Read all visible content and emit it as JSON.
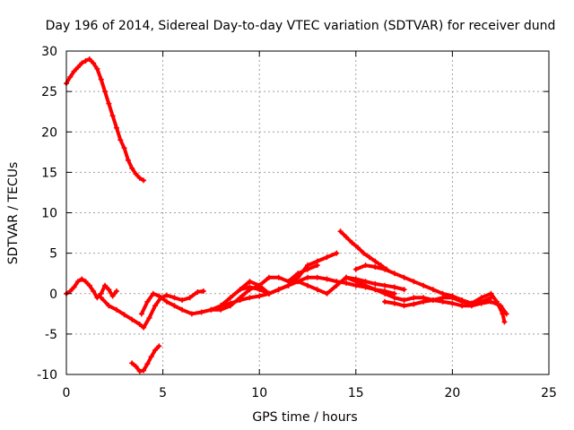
{
  "chart_data": {
    "type": "scatter",
    "title": "Day 196 of 2014, Sidereal Day-to-day VTEC variation (SDTVAR) for receiver dund",
    "xlabel": "GPS time / hours",
    "ylabel": "SDTVAR / TECUs",
    "xlim": [
      0,
      25
    ],
    "ylim": [
      -10,
      30
    ],
    "xticks": [
      0,
      5,
      10,
      15,
      20,
      25
    ],
    "yticks": [
      -10,
      -5,
      0,
      5,
      10,
      15,
      20,
      25,
      30
    ],
    "grid": true,
    "colors": {
      "series": "#ff0000",
      "grid": "#a0a0a0",
      "axis": "#000000"
    },
    "series": [
      {
        "name": "trace-1",
        "x": [
          0.0,
          0.2,
          0.4,
          0.6,
          0.8,
          1.0,
          1.2,
          1.4,
          1.6,
          1.8,
          2.0,
          2.2,
          2.4,
          2.6,
          2.8,
          3.0,
          3.2,
          3.4,
          3.6,
          3.8,
          4.0
        ],
        "y": [
          26.0,
          26.8,
          27.5,
          28.0,
          28.5,
          28.8,
          29.0,
          28.5,
          27.8,
          26.5,
          25.0,
          23.5,
          22.0,
          20.5,
          19.0,
          18.0,
          16.5,
          15.5,
          14.8,
          14.3,
          14.0
        ]
      },
      {
        "name": "trace-2",
        "x": [
          0.0,
          0.2,
          0.4,
          0.6,
          0.8,
          1.0,
          1.2,
          1.4,
          1.6,
          1.8,
          2.0,
          2.2,
          2.4,
          2.6
        ],
        "y": [
          0.0,
          0.3,
          0.8,
          1.5,
          1.8,
          1.5,
          1.0,
          0.3,
          -0.5,
          0.0,
          1.0,
          0.5,
          -0.3,
          0.3
        ]
      },
      {
        "name": "trace-3",
        "x": [
          1.8,
          2.2,
          2.6,
          3.0,
          3.4,
          3.8,
          4.0,
          4.3,
          4.6,
          4.9,
          5.2,
          5.6,
          6.0,
          6.4,
          6.8,
          7.1
        ],
        "y": [
          -0.5,
          -1.5,
          -2.0,
          -2.6,
          -3.2,
          -3.8,
          -4.2,
          -3.0,
          -1.5,
          -0.5,
          -0.2,
          -0.5,
          -0.8,
          -0.5,
          0.2,
          0.3
        ]
      },
      {
        "name": "trace-4",
        "x": [
          3.4,
          3.6,
          3.8,
          4.0,
          4.2,
          4.4,
          4.6,
          4.8
        ],
        "y": [
          -8.6,
          -9.0,
          -9.6,
          -9.5,
          -8.7,
          -7.8,
          -7.0,
          -6.5
        ]
      },
      {
        "name": "trace-5",
        "x": [
          3.9,
          4.2,
          4.5,
          4.8,
          5.2,
          5.6,
          6.0,
          6.5,
          7.0,
          7.5,
          8.0,
          8.5,
          9.0,
          9.5,
          10.0,
          10.5,
          11.0,
          11.5,
          12.0,
          12.5,
          13.0,
          13.5,
          14.0,
          14.5,
          15.0,
          15.5,
          16.0,
          16.5,
          17.0
        ],
        "y": [
          -2.5,
          -1.0,
          0.0,
          -0.3,
          -1.0,
          -1.5,
          -2.0,
          -2.5,
          -2.3,
          -2.0,
          -1.5,
          -1.2,
          -0.8,
          -0.5,
          -0.3,
          0.0,
          0.5,
          1.0,
          1.5,
          2.0,
          2.0,
          1.8,
          1.5,
          1.3,
          1.0,
          0.8,
          0.5,
          0.3,
          0.0
        ]
      },
      {
        "name": "trace-6",
        "x": [
          8.0,
          8.5,
          9.0,
          9.5,
          10.0,
          10.5,
          11.0,
          11.5,
          12.0,
          12.5,
          13.0,
          13.5,
          14.0
        ],
        "y": [
          -1.5,
          -0.5,
          0.5,
          0.8,
          0.5,
          0.0,
          0.5,
          1.0,
          2.0,
          3.5,
          4.0,
          4.5,
          5.0
        ]
      },
      {
        "name": "trace-7",
        "x": [
          7.5,
          8.0,
          8.5,
          9.0,
          9.5,
          10.0,
          10.5,
          11.0,
          11.5,
          12.0,
          12.5,
          13.0
        ],
        "y": [
          -2.0,
          -2.0,
          -1.5,
          -0.5,
          0.5,
          1.0,
          2.0,
          2.0,
          1.5,
          2.5,
          3.0,
          3.5
        ]
      },
      {
        "name": "trace-8",
        "x": [
          9.0,
          9.5,
          10.0,
          10.5,
          11.0,
          11.5,
          12.0,
          12.5,
          13.0,
          13.5,
          14.0,
          14.5,
          15.0,
          15.5,
          16.0,
          16.5,
          17.0,
          17.5
        ],
        "y": [
          0.5,
          1.5,
          1.0,
          0.0,
          0.5,
          1.0,
          1.5,
          1.0,
          0.5,
          0.0,
          1.0,
          2.0,
          1.8,
          1.5,
          1.2,
          1.0,
          0.8,
          0.5
        ]
      },
      {
        "name": "trace-9",
        "x": [
          14.2,
          14.5,
          14.8,
          15.1,
          15.4,
          15.7,
          16.0,
          16.3,
          16.6
        ],
        "y": [
          7.7,
          7.0,
          6.3,
          5.7,
          5.0,
          4.5,
          4.0,
          3.5,
          3.0
        ]
      },
      {
        "name": "trace-10",
        "x": [
          14.5,
          15.0,
          15.5,
          16.0,
          16.5,
          17.0,
          17.5,
          18.0,
          18.5,
          19.0,
          19.5,
          20.0,
          20.5,
          21.0,
          21.5,
          22.0,
          22.5,
          22.8
        ],
        "y": [
          2.0,
          1.5,
          1.0,
          0.5,
          0.0,
          -0.5,
          -0.8,
          -0.5,
          -0.5,
          -0.8,
          -1.0,
          -1.2,
          -1.5,
          -1.5,
          -1.2,
          -1.0,
          -1.5,
          -2.5
        ]
      },
      {
        "name": "trace-11",
        "x": [
          15.0,
          15.5,
          16.0,
          16.5,
          17.0,
          17.5,
          18.0,
          18.5,
          19.0,
          19.5,
          20.0,
          20.5,
          21.0,
          21.5,
          22.0
        ],
        "y": [
          3.0,
          3.5,
          3.3,
          3.0,
          2.5,
          2.0,
          1.5,
          1.0,
          0.5,
          0.0,
          -0.3,
          -0.8,
          -1.2,
          -1.0,
          -0.5
        ]
      },
      {
        "name": "trace-12",
        "x": [
          16.5,
          17.0,
          17.5,
          18.0,
          18.5,
          19.0,
          19.5,
          20.0,
          20.5,
          21.0,
          21.5,
          22.0,
          22.3,
          22.6,
          22.7
        ],
        "y": [
          -1.0,
          -1.2,
          -1.5,
          -1.3,
          -1.0,
          -0.8,
          -0.5,
          -0.5,
          -1.0,
          -1.2,
          -0.5,
          0.0,
          -1.0,
          -2.5,
          -3.5
        ]
      }
    ]
  }
}
